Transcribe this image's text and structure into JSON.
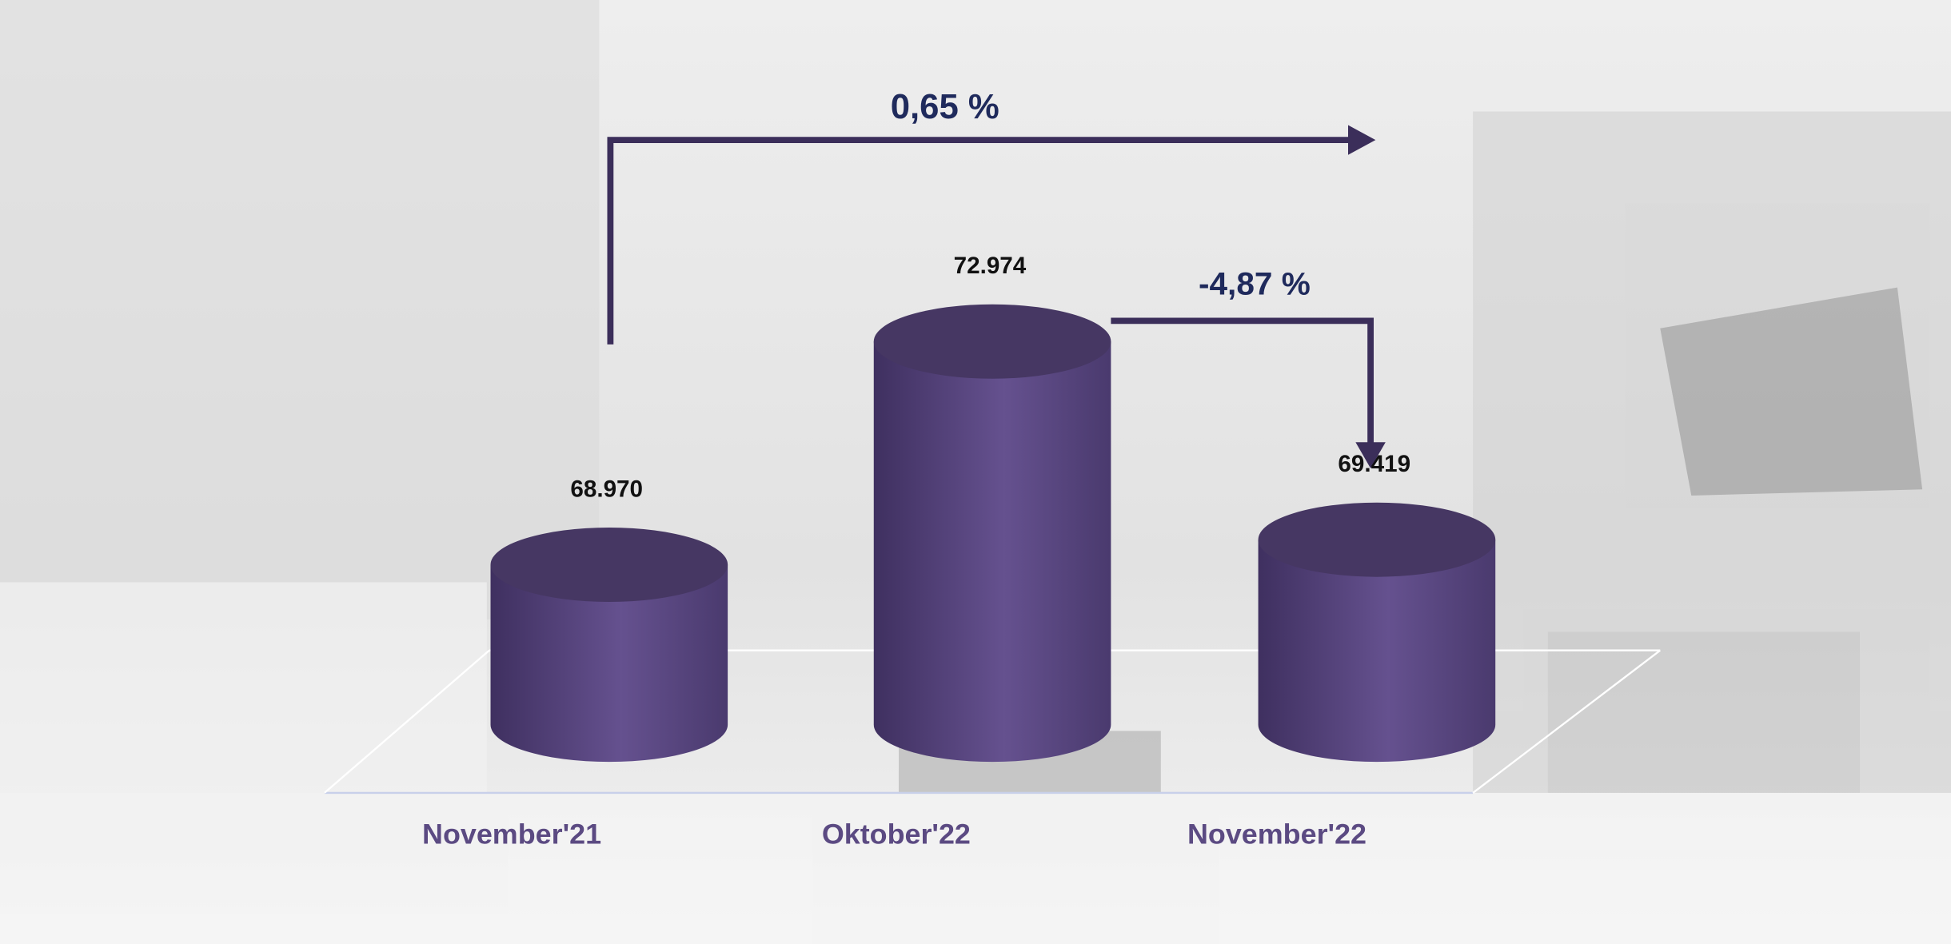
{
  "chart_data": {
    "type": "bar",
    "categories": [
      "November'21",
      "Oktober'22",
      "November'22"
    ],
    "values": [
      68970,
      72974,
      69419
    ],
    "value_labels": [
      "68.970",
      "72.974",
      "69.419"
    ],
    "color": "#5a4784",
    "ylim": [
      66100,
      73500
    ],
    "annotations": [
      "0,65 %",
      "-4,87 %"
    ]
  }
}
